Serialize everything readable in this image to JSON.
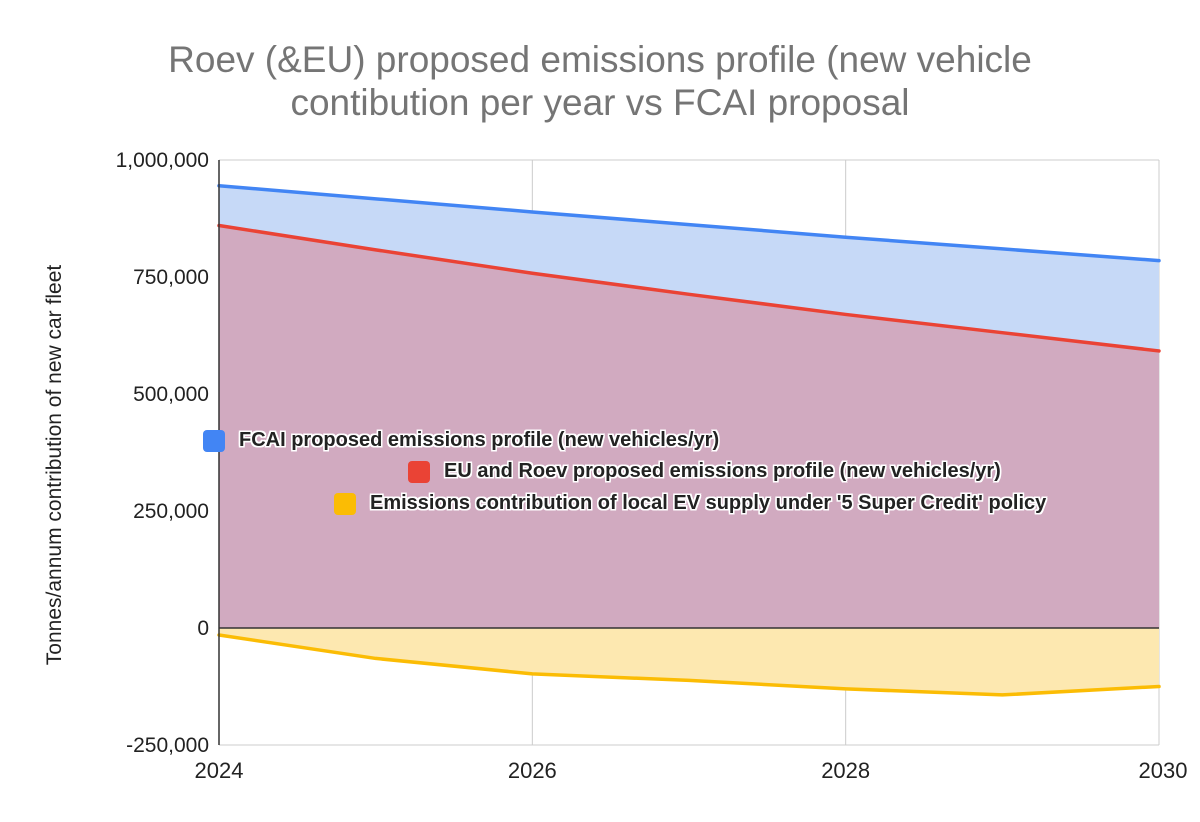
{
  "chart_data": {
    "type": "area",
    "title_lines": [
      "Roev (&EU) proposed emissions profile (new vehicle",
      "contibution per year vs FCAI proposal"
    ],
    "ylabel": "Tonnes/annum contribution of new car fleet",
    "xlabel": "",
    "x": [
      2024,
      2025,
      2026,
      2027,
      2028,
      2029,
      2030
    ],
    "xlim": [
      2024,
      2030
    ],
    "ylim": [
      -250000,
      1000000
    ],
    "x_ticks": [
      2024,
      2026,
      2028,
      2030
    ],
    "x_tick_labels": [
      "2024",
      "2026",
      "2028",
      "2030"
    ],
    "y_ticks": [
      -250000,
      0,
      250000,
      500000,
      750000,
      1000000
    ],
    "y_tick_labels": [
      "-250,000",
      "0",
      "250,000",
      "500,000",
      "750,000",
      "1,000,000"
    ],
    "grid": true,
    "legend_position": "inside-middle",
    "series": [
      {
        "name": "FCAI proposed emissions profile (new vehicles/yr)",
        "color": "#4285f4",
        "fill": "#c6d9f7",
        "values": [
          945000,
          917000,
          889000,
          862000,
          835000,
          810000,
          785000
        ]
      },
      {
        "name": "EU and Roev proposed emissions profile (new vehicles/yr)",
        "color": "#ea4335",
        "fill": "#d1aac0",
        "values": [
          860000,
          808000,
          758000,
          713000,
          670000,
          631000,
          592000
        ]
      },
      {
        "name": "Emissions contribution of local EV supply under '5 Super Credit' policy",
        "color": "#fbbc04",
        "fill": "#fde8b0",
        "values": [
          -15000,
          -65000,
          -98000,
          -112000,
          -130000,
          -143000,
          -125000
        ]
      }
    ]
  }
}
